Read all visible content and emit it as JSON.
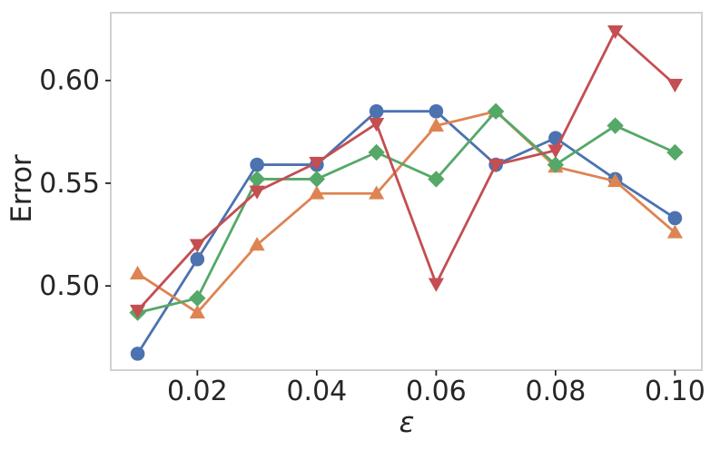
{
  "figure": {
    "background": "#ffffff",
    "spine_color": "#cccccc",
    "text_color": "#262626"
  },
  "axes": {
    "ylabel": "Error",
    "xlabel": "ε",
    "xlim": [
      0.0055,
      0.1045
    ],
    "ylim": [
      0.459,
      0.633
    ],
    "xticks": [
      0.02,
      0.04,
      0.06,
      0.08,
      0.1
    ],
    "xtick_labels": [
      "0.02",
      "0.04",
      "0.06",
      "0.08",
      "0.10"
    ],
    "yticks": [
      0.5,
      0.55,
      0.6
    ],
    "ytick_labels": [
      "0.50",
      "0.55",
      "0.60"
    ],
    "grid": false,
    "legend": "none"
  },
  "chart_data": {
    "type": "line",
    "title": "",
    "xlabel": "ε",
    "ylabel": "Error",
    "xlim": [
      0.0055,
      0.1045
    ],
    "ylim": [
      0.459,
      0.633
    ],
    "x": [
      0.01,
      0.02,
      0.03,
      0.04,
      0.05,
      0.06,
      0.07,
      0.08,
      0.09,
      0.1
    ],
    "series": [
      {
        "name": "series-blue",
        "color": "#4c72b0",
        "marker": "circle",
        "values": [
          0.467,
          0.513,
          0.559,
          0.559,
          0.585,
          0.585,
          0.559,
          0.572,
          0.552,
          0.533
        ]
      },
      {
        "name": "series-orange",
        "color": "#dd8452",
        "marker": "triangle-up",
        "values": [
          0.506,
          0.487,
          0.52,
          0.545,
          0.545,
          0.578,
          0.585,
          0.558,
          0.551,
          0.526
        ]
      },
      {
        "name": "series-green",
        "color": "#55a868",
        "marker": "diamond",
        "values": [
          0.487,
          0.494,
          0.552,
          0.552,
          0.565,
          0.552,
          0.585,
          0.559,
          0.578,
          0.565
        ]
      },
      {
        "name": "series-red",
        "color": "#c44e52",
        "marker": "triangle-down",
        "values": [
          0.488,
          0.52,
          0.546,
          0.56,
          0.579,
          0.501,
          0.559,
          0.566,
          0.624,
          0.598
        ]
      }
    ]
  }
}
